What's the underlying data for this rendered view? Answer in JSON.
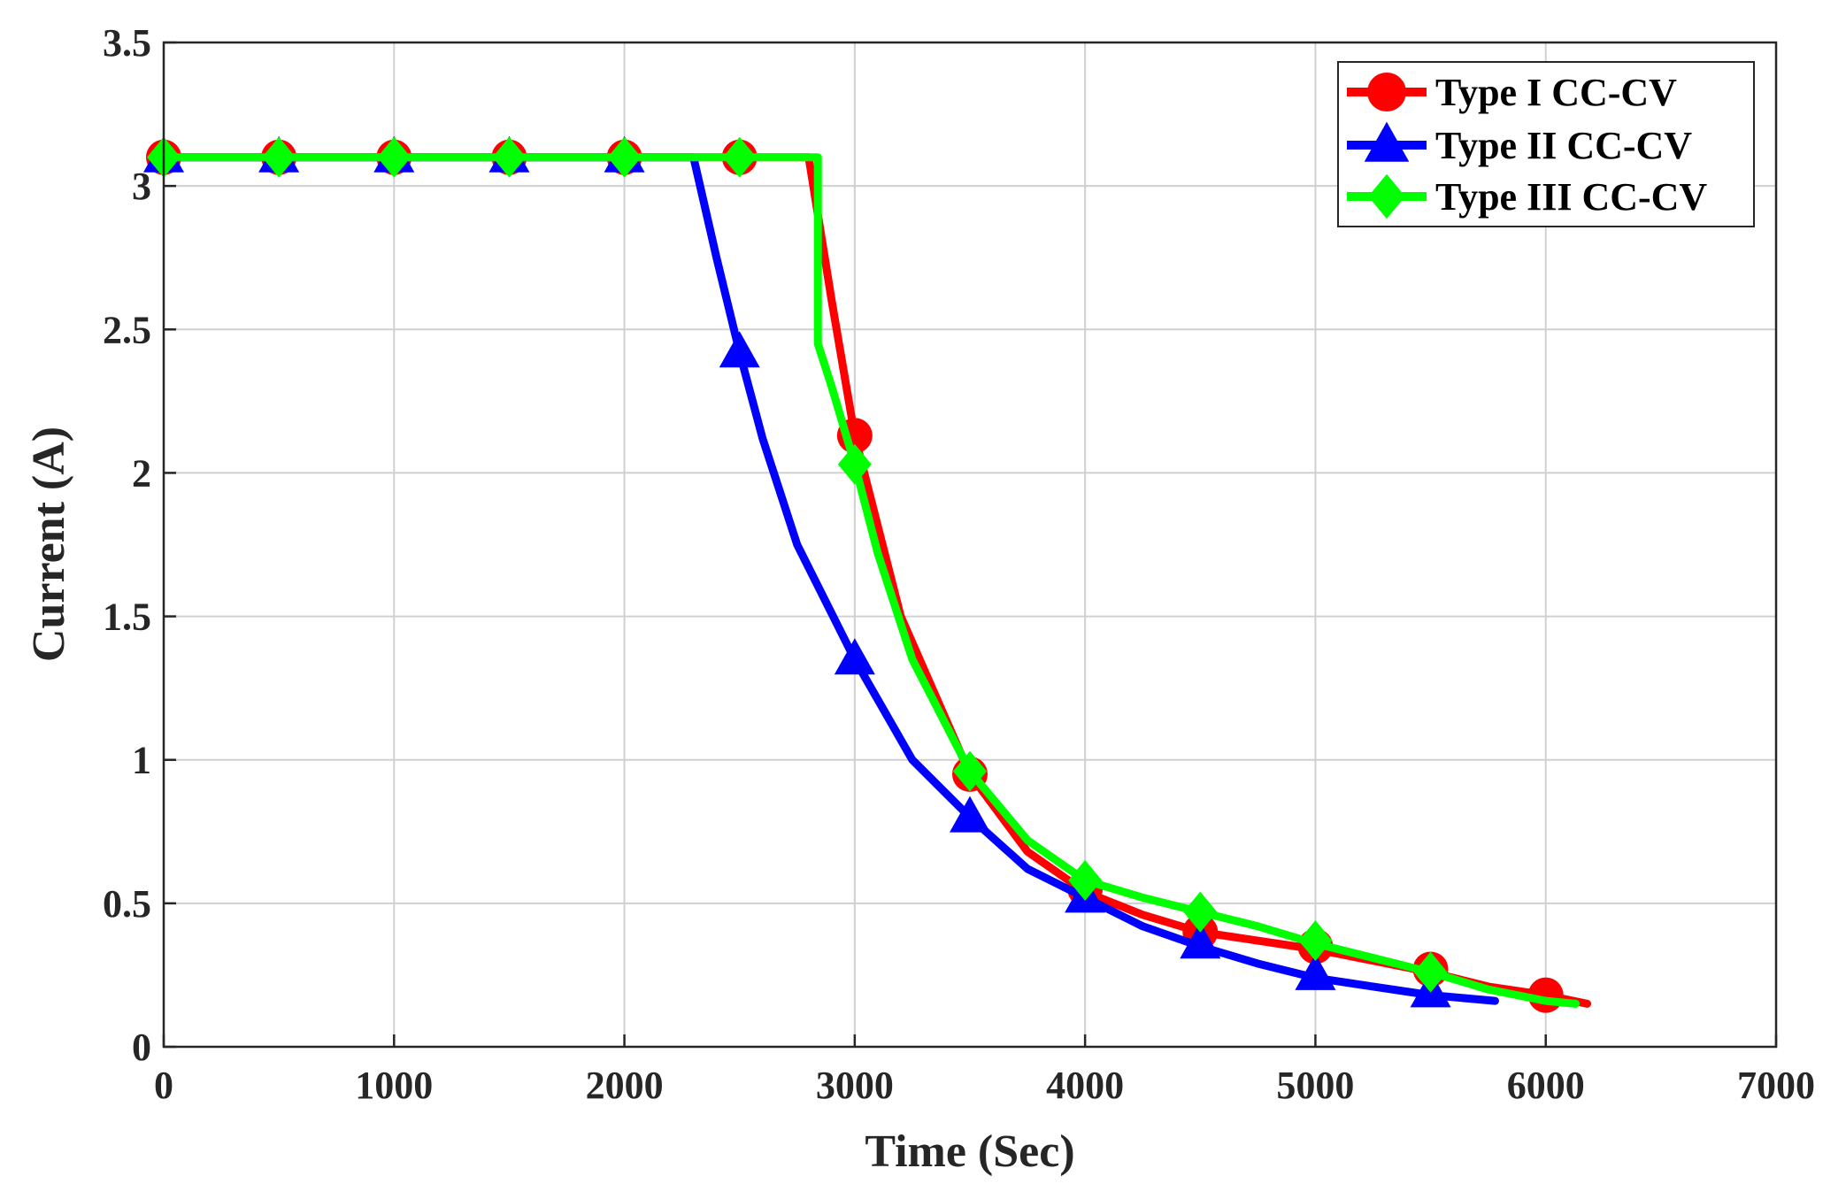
{
  "chart_data": {
    "type": "line",
    "title": "",
    "xlabel": "Time (Sec)",
    "ylabel": "Current (A)",
    "xlim": [
      0,
      7000
    ],
    "ylim": [
      0,
      3.5
    ],
    "xticks": [
      0,
      1000,
      2000,
      3000,
      4000,
      5000,
      6000,
      7000
    ],
    "yticks": [
      0,
      0.5,
      1,
      1.5,
      2,
      2.5,
      3,
      3.5
    ],
    "grid": true,
    "legend_position": "top-right",
    "series": [
      {
        "name": "Type I CC-CV",
        "color": "#ff0000",
        "marker": "circle",
        "x": [
          0,
          500,
          1000,
          1500,
          2000,
          2500,
          2800,
          2900,
          3000,
          3200,
          3500,
          3750,
          4000,
          4250,
          4500,
          4750,
          5000,
          5250,
          5500,
          5750,
          6000,
          6180
        ],
        "y": [
          3.1,
          3.1,
          3.1,
          3.1,
          3.1,
          3.1,
          3.1,
          2.6,
          2.13,
          1.5,
          0.95,
          0.68,
          0.54,
          0.46,
          0.4,
          0.37,
          0.34,
          0.3,
          0.26,
          0.21,
          0.18,
          0.15
        ],
        "markers_x": [
          0,
          500,
          1000,
          1500,
          2000,
          2500,
          3000,
          3500,
          4000,
          4500,
          5000,
          5500,
          6000
        ],
        "markers_y": [
          3.1,
          3.1,
          3.1,
          3.1,
          3.1,
          3.1,
          2.13,
          0.95,
          0.55,
          0.4,
          0.35,
          0.27,
          0.18
        ]
      },
      {
        "name": "Type II CC-CV",
        "color": "#0000ff",
        "marker": "triangle",
        "x": [
          0,
          500,
          1000,
          1500,
          2000,
          2300,
          2400,
          2500,
          2600,
          2750,
          3000,
          3250,
          3500,
          3750,
          4000,
          4250,
          4500,
          4750,
          5000,
          5250,
          5500,
          5780
        ],
        "y": [
          3.1,
          3.1,
          3.1,
          3.1,
          3.1,
          3.1,
          2.75,
          2.42,
          2.12,
          1.75,
          1.35,
          1.0,
          0.8,
          0.62,
          0.52,
          0.42,
          0.35,
          0.29,
          0.24,
          0.21,
          0.18,
          0.16
        ],
        "markers_x": [
          0,
          500,
          1000,
          1500,
          2000,
          2500,
          3000,
          3500,
          4000,
          4500,
          5000,
          5500
        ],
        "markers_y": [
          3.1,
          3.1,
          3.1,
          3.1,
          3.1,
          2.42,
          1.35,
          0.8,
          0.52,
          0.36,
          0.25,
          0.19
        ]
      },
      {
        "name": "Type III CC-CV",
        "color": "#00ff00",
        "marker": "diamond",
        "x": [
          0,
          500,
          1000,
          1500,
          2000,
          2500,
          2820,
          2840,
          2840,
          2860,
          2900,
          3000,
          3100,
          3250,
          3500,
          3750,
          4000,
          4250,
          4500,
          4750,
          5000,
          5250,
          5500,
          5750,
          6000,
          6130
        ],
        "y": [
          3.1,
          3.1,
          3.1,
          3.1,
          3.1,
          3.1,
          3.1,
          3.1,
          2.45,
          2.4,
          2.3,
          2.03,
          1.72,
          1.35,
          0.96,
          0.72,
          0.58,
          0.52,
          0.47,
          0.42,
          0.36,
          0.31,
          0.26,
          0.2,
          0.16,
          0.15
        ],
        "markers_x": [
          0,
          500,
          1000,
          1500,
          2000,
          2500,
          3000,
          3500,
          4000,
          4500,
          5000,
          5500
        ],
        "markers_y": [
          3.1,
          3.1,
          3.1,
          3.1,
          3.1,
          3.1,
          2.03,
          0.96,
          0.58,
          0.47,
          0.37,
          0.26
        ]
      }
    ]
  }
}
